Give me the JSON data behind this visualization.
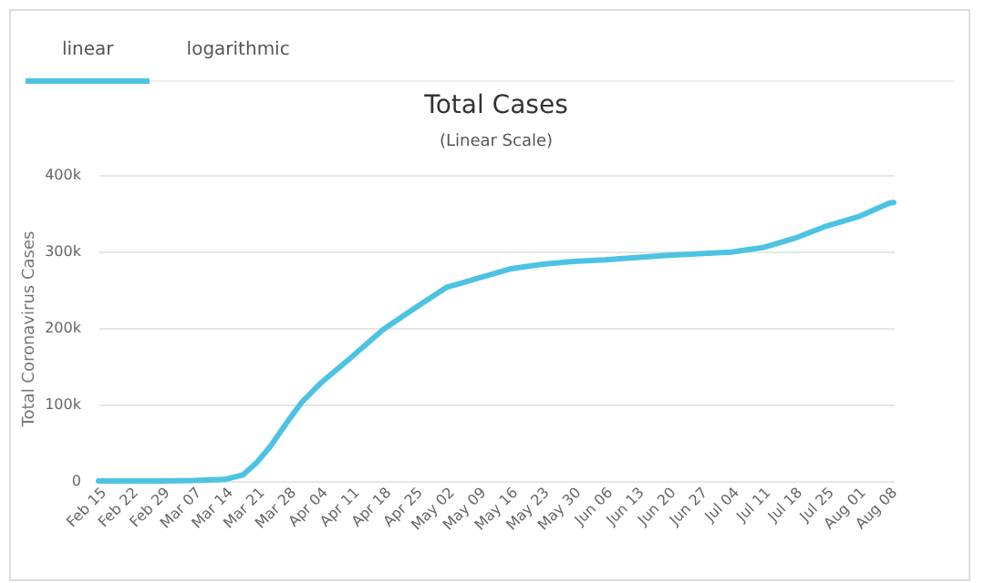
{
  "chart_data": {
    "type": "line",
    "title": "Total Cases",
    "subtitle": "(Linear Scale)",
    "ylabel": "Total Coronavirus Cases",
    "annotations": [
      "linear",
      "logarithmic"
    ],
    "x": [
      "--02-15",
      "--02-22",
      "--02-29",
      "--03-07",
      "--03-14",
      "--03-18",
      "--03-21",
      "--03-24",
      "--03-28",
      "--03-31",
      "--04-04",
      "--04-11",
      "--04-18",
      "--04-25",
      "--05-02",
      "--05-09",
      "--05-16",
      "--05-23",
      "--05-30",
      "--06-06",
      "--06-13",
      "--06-20",
      "--06-27",
      "--07-04",
      "--07-11",
      "--07-18",
      "--07-25",
      "--08-01",
      "--08-08",
      "--08-09"
    ],
    "series": [
      {
        "color": "#4cc3e3",
        "values": [
          0,
          0,
          0,
          500,
          2000,
          8000,
          24000,
          45000,
          79000,
          103000,
          127000,
          162000,
          198000,
          226000,
          253000,
          265000,
          277000,
          283000,
          287000,
          289000,
          292000,
          295000,
          297000,
          299000,
          305000,
          317000,
          333000,
          345000,
          363000,
          364000
        ]
      }
    ],
    "xlim": [
      "--02-15",
      "--08-09"
    ],
    "xticks": [
      {
        "value": "--02-15",
        "label": "Feb 15"
      },
      {
        "value": "--02-22",
        "label": "Feb 22"
      },
      {
        "value": "--02-29",
        "label": "Feb 29"
      },
      {
        "value": "--03-07",
        "label": "Mar 07"
      },
      {
        "value": "--03-14",
        "label": "Mar 14"
      },
      {
        "value": "--03-21",
        "label": "Mar 21"
      },
      {
        "value": "--03-28",
        "label": "Mar 28"
      },
      {
        "value": "--04-04",
        "label": "Apr 04"
      },
      {
        "value": "--04-11",
        "label": "Apr 11"
      },
      {
        "value": "--04-18",
        "label": "Apr 18"
      },
      {
        "value": "--04-25",
        "label": "Apr 25"
      },
      {
        "value": "--05-02",
        "label": "May 02"
      },
      {
        "value": "--05-09",
        "label": "May 09"
      },
      {
        "value": "--05-16",
        "label": "May 16"
      },
      {
        "value": "--05-23",
        "label": "May 23"
      },
      {
        "value": "--05-30",
        "label": "May 30"
      },
      {
        "value": "--06-06",
        "label": "Jun 06"
      },
      {
        "value": "--06-13",
        "label": "Jun 13"
      },
      {
        "value": "--06-20",
        "label": "Jun 20"
      },
      {
        "value": "--06-27",
        "label": "Jun 27"
      },
      {
        "value": "--07-04",
        "label": "Jul 04"
      },
      {
        "value": "--07-11",
        "label": "Jul 11"
      },
      {
        "value": "--07-18",
        "label": "Jul 18"
      },
      {
        "value": "--07-25",
        "label": "Jul 25"
      },
      {
        "value": "--08-01",
        "label": "Aug 01"
      },
      {
        "value": "--08-08",
        "label": "Aug 08"
      }
    ],
    "ylim": [
      0,
      400000
    ],
    "yticks": [
      {
        "value": 0,
        "label": "0"
      },
      {
        "value": 100000,
        "label": "100k"
      },
      {
        "value": 200000,
        "label": "200k"
      },
      {
        "value": 300000,
        "label": "300k"
      },
      {
        "value": 400000,
        "label": "400k"
      }
    ],
    "grid": "y",
    "marker": "none",
    "line_style": "solid"
  }
}
